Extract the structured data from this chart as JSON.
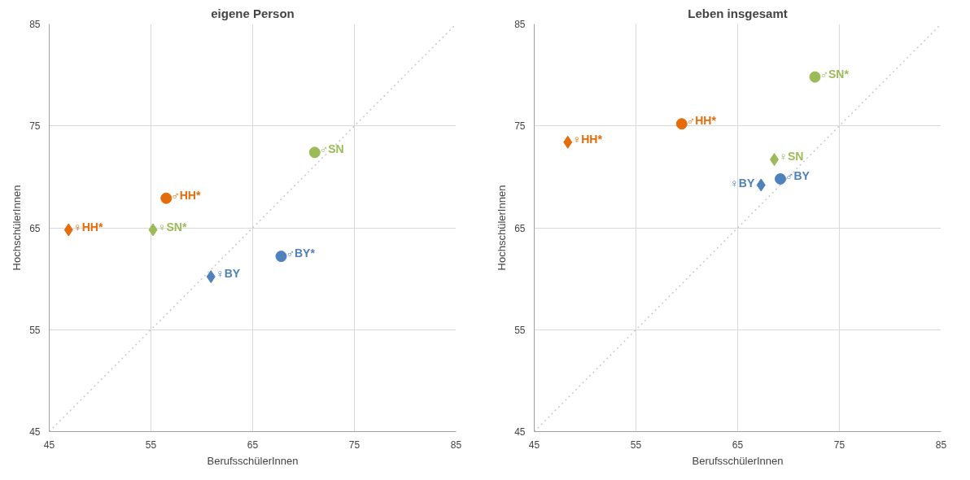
{
  "chart_data": [
    {
      "type": "scatter",
      "title": "eigene Person",
      "xlabel": "BerufsschülerInnen",
      "ylabel": "HochschülerInnen",
      "xlim": [
        45,
        85
      ],
      "ylim": [
        45,
        85
      ],
      "xticks": [
        45,
        55,
        65,
        75,
        85
      ],
      "yticks": [
        45,
        55,
        65,
        75,
        85
      ],
      "grid": true,
      "legend": false,
      "series": [
        {
          "type": "line",
          "color": "#c8c8c8",
          "line_style": "dotted",
          "marker": "none",
          "x": [
            45,
            85
          ],
          "values": [
            45,
            85
          ]
        },
        {
          "name": "♀HH*",
          "color": "#e46c0a",
          "marker": "diamond",
          "x": [
            46.9
          ],
          "values": [
            64.8
          ]
        },
        {
          "name": "♂HH*",
          "color": "#e46c0a",
          "marker": "circle",
          "x": [
            56.5
          ],
          "values": [
            67.9
          ]
        },
        {
          "name": "♀SN*",
          "color": "#9bbb59",
          "marker": "diamond",
          "x": [
            55.2
          ],
          "values": [
            64.8
          ]
        },
        {
          "name": "♂SN",
          "color": "#9bbb59",
          "marker": "circle",
          "x": [
            71.1
          ],
          "values": [
            72.4
          ]
        },
        {
          "name": "♀BY",
          "color": "#4f81bd",
          "marker": "diamond",
          "x": [
            60.9
          ],
          "values": [
            60.2
          ]
        },
        {
          "name": "♂BY*",
          "color": "#4f81bd",
          "marker": "circle",
          "x": [
            67.8
          ],
          "values": [
            62.2
          ]
        }
      ]
    },
    {
      "type": "scatter",
      "title": "Leben insgesamt",
      "xlabel": "BerufsschülerInnen",
      "ylabel": "HochschülerInnen",
      "xlim": [
        45,
        85
      ],
      "ylim": [
        45,
        85
      ],
      "xticks": [
        45,
        55,
        65,
        75,
        85
      ],
      "yticks": [
        45,
        55,
        65,
        75,
        85
      ],
      "grid": true,
      "legend": false,
      "series": [
        {
          "type": "line",
          "color": "#c8c8c8",
          "line_style": "dotted",
          "marker": "none",
          "x": [
            45,
            85
          ],
          "values": [
            45,
            85
          ]
        },
        {
          "name": "♀HH*",
          "color": "#e46c0a",
          "marker": "diamond",
          "x": [
            48.3
          ],
          "values": [
            73.4
          ]
        },
        {
          "name": "♂HH*",
          "color": "#e46c0a",
          "marker": "circle",
          "x": [
            59.5
          ],
          "values": [
            75.2
          ]
        },
        {
          "name": "♀SN",
          "color": "#9bbb59",
          "marker": "diamond",
          "x": [
            68.6
          ],
          "values": [
            71.7
          ]
        },
        {
          "name": "♂SN*",
          "color": "#9bbb59",
          "marker": "circle",
          "x": [
            72.6
          ],
          "values": [
            79.8
          ]
        },
        {
          "name": "♀BY",
          "color": "#4f81bd",
          "marker": "diamond",
          "x": [
            67.3
          ],
          "values": [
            69.2
          ]
        },
        {
          "name": "♂BY",
          "color": "#4f81bd",
          "marker": "circle",
          "x": [
            69.2
          ],
          "values": [
            69.8
          ]
        }
      ]
    }
  ]
}
